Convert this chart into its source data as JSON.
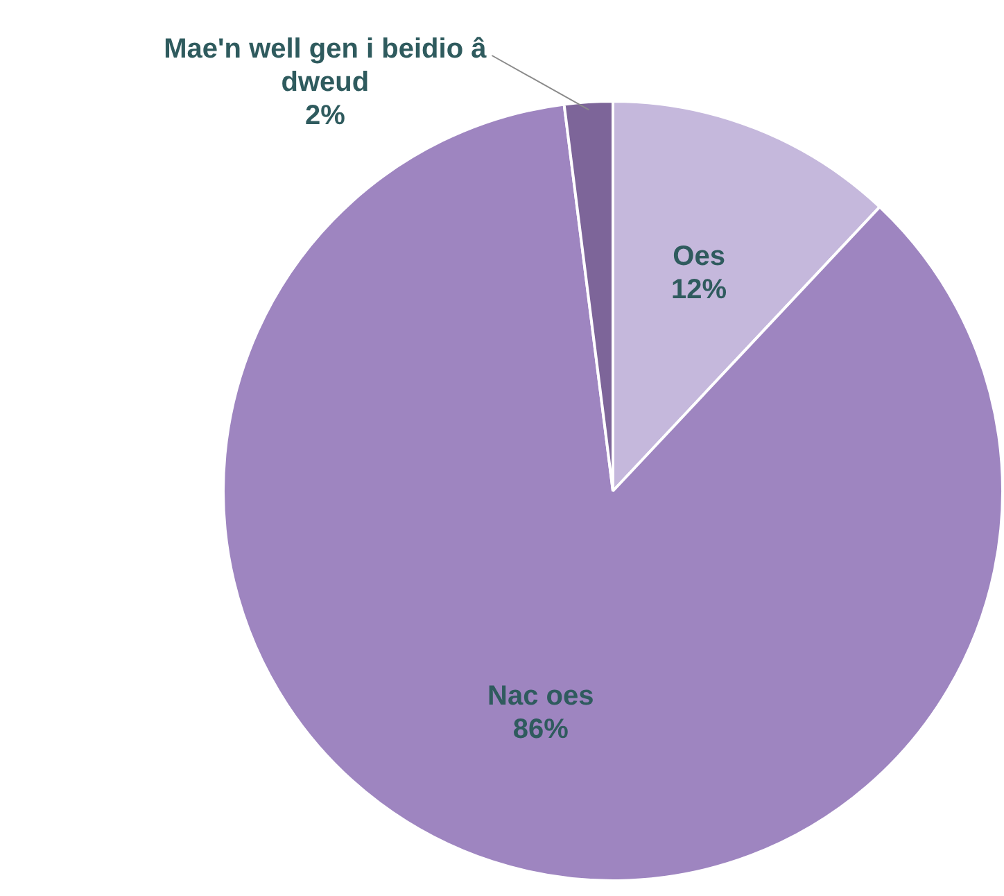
{
  "chart_data": {
    "type": "pie",
    "categories": [
      "Oes",
      "Nac oes",
      "Mae'n well gen i beidio â dweud"
    ],
    "values": [
      12,
      86,
      2
    ],
    "colors": [
      "#c5b8dc",
      "#9e85c0",
      "#7d6599"
    ],
    "value_labels": [
      "12%",
      "86%",
      "2%"
    ],
    "legend": false
  }
}
